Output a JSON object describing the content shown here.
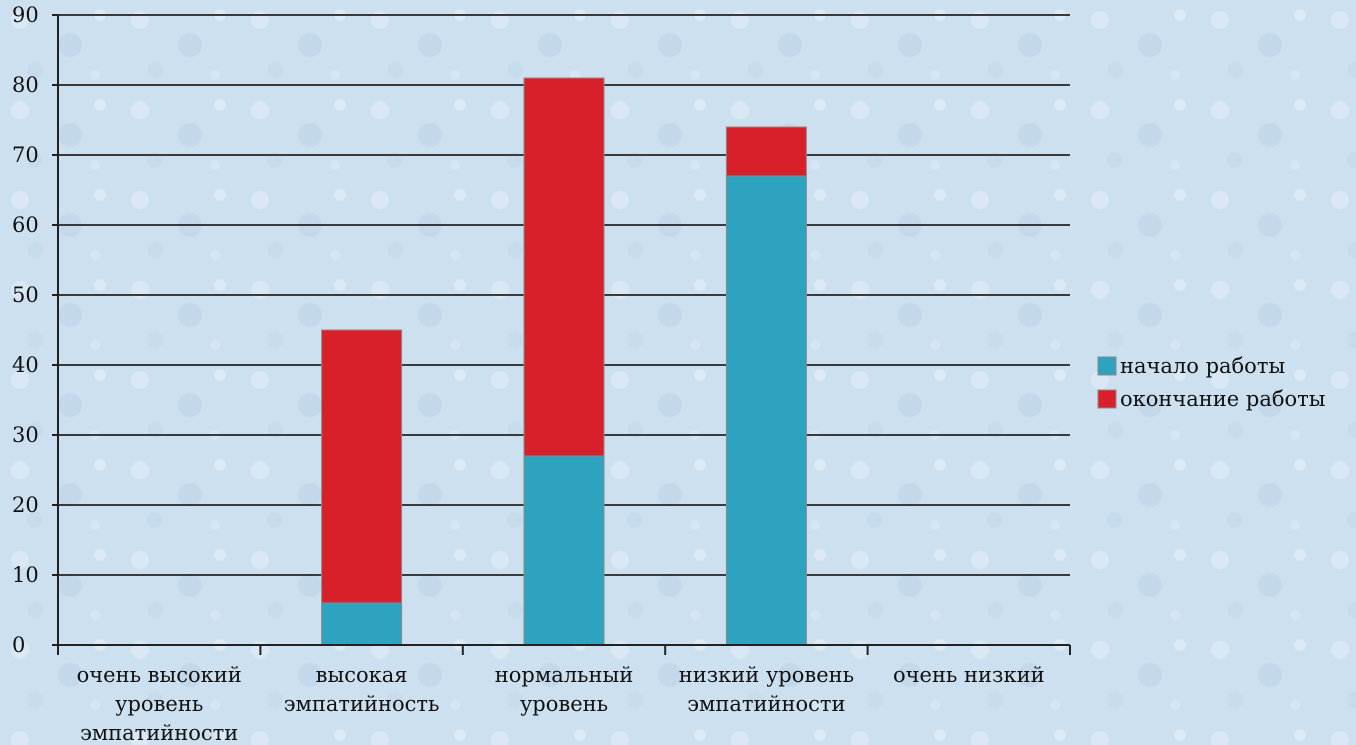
{
  "chart_data": {
    "type": "bar",
    "stacked": true,
    "categories": [
      [
        "очень высокий",
        "уровень",
        "эмпатийности"
      ],
      [
        "высокая",
        "эмпатийность"
      ],
      [
        "нормальный",
        "уровень"
      ],
      [
        "низкий уровень",
        "эмпатийности"
      ],
      [
        "очень низкий"
      ]
    ],
    "series": [
      {
        "name": "начало работы",
        "color": "#2ea3bf",
        "values": [
          0,
          6,
          27,
          67,
          0
        ]
      },
      {
        "name": "окончание работы",
        "color": "#d8202a",
        "values": [
          0,
          39,
          54,
          7,
          0
        ]
      }
    ],
    "ylim": [
      0,
      90
    ],
    "yticks": [
      0,
      10,
      20,
      30,
      40,
      50,
      60,
      70,
      80,
      90
    ],
    "grid": true,
    "legend_position": "right"
  }
}
